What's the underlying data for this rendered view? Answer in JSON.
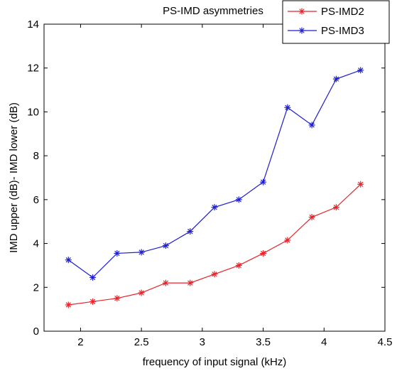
{
  "chart_data": {
    "type": "line",
    "title": "PS-IMD asymmetries",
    "xlabel": "frequency of input signal (kHz)",
    "ylabel": "IMD upper (dB)- IMD lower (dB)",
    "xlim": [
      1.7,
      4.5
    ],
    "ylim": [
      0,
      14
    ],
    "xticks": [
      2,
      2.5,
      3,
      3.5,
      4,
      4.5
    ],
    "yticks": [
      0,
      2,
      4,
      6,
      8,
      10,
      12,
      14
    ],
    "xtick_labels": [
      "2",
      "2.5",
      "3",
      "3.5",
      "4",
      "4.5"
    ],
    "ytick_labels": [
      "0",
      "2",
      "4",
      "6",
      "8",
      "10",
      "12",
      "14"
    ],
    "grid": false,
    "legend_position": "top-right",
    "x": [
      1.9,
      2.1,
      2.3,
      2.5,
      2.7,
      2.9,
      3.1,
      3.3,
      3.5,
      3.7,
      3.9,
      4.1,
      4.3
    ],
    "series": [
      {
        "name": "PS-IMD2",
        "color": "#e8232a",
        "marker": "asterisk",
        "values": [
          1.2,
          1.35,
          1.5,
          1.75,
          2.2,
          2.2,
          2.6,
          3.0,
          3.55,
          4.15,
          5.2,
          5.65,
          6.7
        ]
      },
      {
        "name": "PS-IMD3",
        "color": "#1f1fd1",
        "marker": "asterisk",
        "values": [
          3.25,
          2.45,
          3.55,
          3.6,
          3.9,
          4.55,
          5.65,
          6.0,
          6.8,
          10.2,
          9.4,
          11.5,
          11.9
        ]
      }
    ]
  }
}
